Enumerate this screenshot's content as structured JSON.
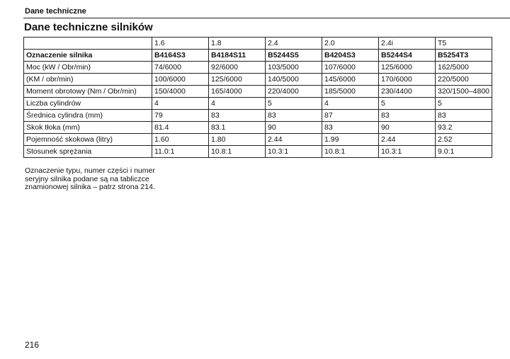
{
  "header": {
    "section": "Dane techniczne",
    "title": "Dane techniczne silników"
  },
  "table": {
    "columns": [
      "",
      "1.6",
      "1.8",
      "2.4",
      "2.0",
      "2.4i",
      "T5"
    ],
    "rows": [
      [
        "Oznaczenie silnika",
        "B4164S3",
        "B4184S11",
        "B5244S5",
        "B4204S3",
        "B5244S4",
        "B5254T3"
      ],
      [
        "Moc (kW / Obr/min)",
        "74/6000",
        "92/6000",
        "103/5000",
        "107/6000",
        "125/6000",
        "162/5000"
      ],
      [
        "(KM / obr/min)",
        "100/6000",
        "125/6000",
        "140/5000",
        "145/6000",
        "170/6000",
        "220/5000"
      ],
      [
        "Moment obrotowy (Nm / Obr/min)",
        "150/4000",
        "165/4000",
        "220/4000",
        "185/5000",
        "230/4400",
        "320/1500–4800"
      ],
      [
        "Liczba cylindrów",
        "4",
        "4",
        "5",
        "4",
        "5",
        "5"
      ],
      [
        "Średnica cylindra (mm)",
        "79",
        "83",
        "83",
        "87",
        "83",
        "83"
      ],
      [
        "Skok tłoka (mm)",
        "81.4",
        "83.1",
        "90",
        "83",
        "90",
        "93.2"
      ],
      [
        "Pojemność skokowa (litry)",
        "1.60",
        "1.80",
        "2.44",
        "1.99",
        "2.44",
        "2.52"
      ],
      [
        "Stosunek sprężania",
        "11.0:1",
        "10.8:1",
        "10.3:1",
        "10.8:1",
        "10.3:1",
        "9.0:1"
      ]
    ]
  },
  "note": "Oznaczenie typu, numer części i numer seryjny silnika podane są na tabliczce znamionowej silnika – patrz strona 214.",
  "page_number": "216"
}
